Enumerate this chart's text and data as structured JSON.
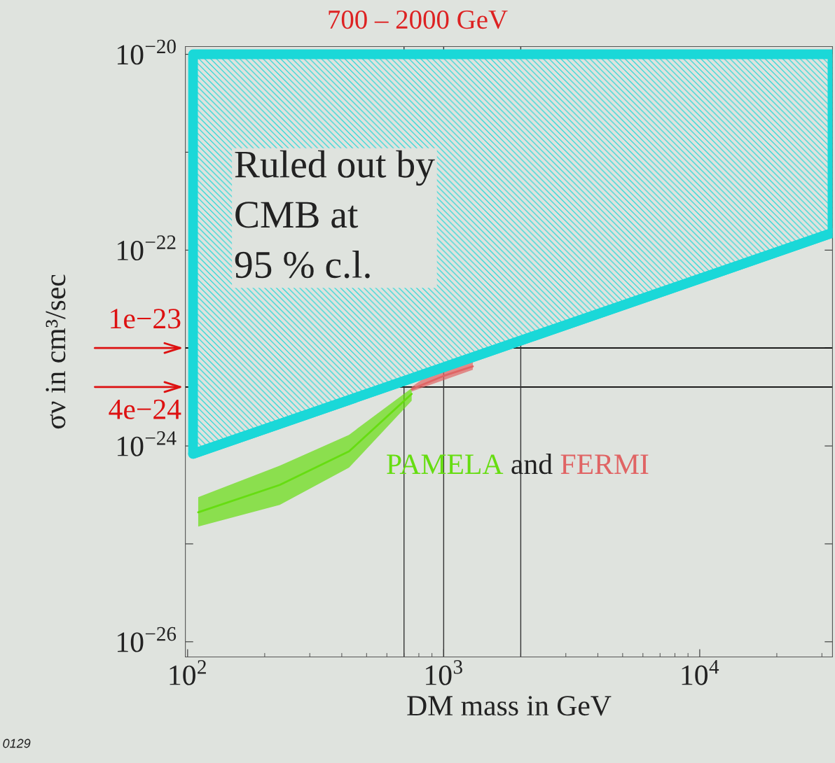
{
  "chart_data": {
    "type": "line",
    "xlabel": "DM mass in GeV",
    "ylabel": "σν in cm³/sec",
    "log": "xy",
    "xlim": [
      98,
      33000
    ],
    "ylim": [
      7e-27,
      1.2e-20
    ],
    "xticks": [
      {
        "value": 100,
        "label": "10$^{2}$"
      },
      {
        "value": 1000,
        "label": "10$^{3}$"
      },
      {
        "value": 10000,
        "label": "10$^{4}$"
      }
    ],
    "yticks": [
      {
        "value": 1e-26,
        "label": "10$^{−26}$"
      },
      {
        "value": 1e-25,
        "label": null
      },
      {
        "value": 1e-24,
        "label": "10$^{−24}$"
      },
      {
        "value": 1e-23,
        "label": null
      },
      {
        "value": 1e-22,
        "label": "10$^{−22}$"
      },
      {
        "value": 1e-21,
        "label": null
      },
      {
        "value": 1e-20,
        "label": "10$^{−20}$"
      }
    ],
    "grid": false,
    "legend": false,
    "series": [
      {
        "color": "#1ad8d8",
        "x": [
          105,
          33000
        ],
        "values": [
          8.3e-25,
          1.5e-22
        ],
        "lower": [
          8.3e-25,
          1.5e-22
        ],
        "upper": [
          1e-20,
          1e-20
        ]
      },
      {
        "name": "PAMELA",
        "color": "#66dd11",
        "x": [
          110,
          229,
          427,
          750
        ],
        "values": [
          2.1e-25,
          4e-25,
          8.8e-25,
          3.4e-24
        ],
        "lower": [
          1.5e-25,
          2.5e-25,
          6e-25,
          2.9e-24
        ],
        "upper": [
          3e-25,
          6.3e-25,
          1.3e-24,
          3.9e-24
        ]
      },
      {
        "name": "FERMI",
        "color": "#e06464",
        "x": [
          750,
          1000,
          1300
        ],
        "values": [
          3.8e-24,
          5.2e-24,
          6.5e-24
        ],
        "lower": [
          3.6e-24,
          4.7e-24,
          6e-24
        ],
        "upper": [
          4e-24,
          6.9e-24,
          7.6e-24
        ]
      }
    ],
    "ref_lines": [
      {
        "axis": "y",
        "value": 1e-23,
        "label": "1e−23",
        "color": "#000000"
      },
      {
        "axis": "y",
        "value": 4e-24,
        "label": "4e−24",
        "color": "#000000"
      },
      {
        "axis": "x",
        "value": 700,
        "color": "#333333"
      },
      {
        "axis": "x",
        "value": 1000,
        "color": "#333333"
      },
      {
        "axis": "x",
        "value": 2000,
        "color": "#333333"
      }
    ],
    "annotations": [
      "Ruled out by\nCMB at\n95 % c.l.",
      "and",
      "700 – 2000 GeV",
      "0129"
    ]
  }
}
